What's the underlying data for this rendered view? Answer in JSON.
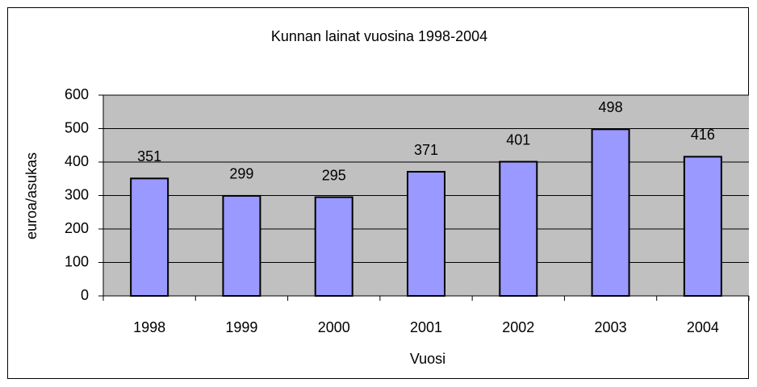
{
  "chart_data": {
    "type": "bar",
    "title": "Kunnan lainat vuosina 1998-2004",
    "x_label": "Vuosi",
    "y_label": "euroa/asukas",
    "categories": [
      "1998",
      "1999",
      "2000",
      "2001",
      "2002",
      "2003",
      "2004"
    ],
    "values": [
      351,
      299,
      295,
      371,
      401,
      498,
      416
    ],
    "color": "#9999ff",
    "ylim": [
      0,
      600
    ],
    "yticks": [
      0,
      100,
      200,
      300,
      400,
      500,
      600
    ],
    "grid": true
  }
}
